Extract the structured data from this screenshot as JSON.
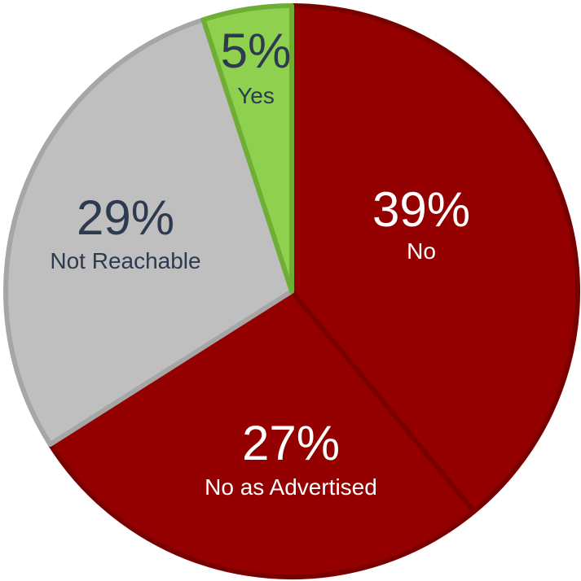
{
  "chart_data": {
    "type": "pie",
    "start_angle_deg": 0,
    "direction": "clockwise",
    "slices": [
      {
        "name": "No",
        "value": 39,
        "pct_label": "39%",
        "color": "#940000",
        "stroke": "#7a0000",
        "text_color": "#ffffff"
      },
      {
        "name": "No as Advertised",
        "value": 27,
        "pct_label": "27%",
        "color": "#940000",
        "stroke": "#7a0000",
        "text_color": "#ffffff"
      },
      {
        "name": "Not Reachable",
        "value": 29,
        "pct_label": "29%",
        "color": "#bfbfbf",
        "stroke": "#a6a6a6",
        "text_color": "#2e3a4f"
      },
      {
        "name": "Yes",
        "value": 5,
        "pct_label": "5%",
        "color": "#8fd14f",
        "stroke": "#6fae35",
        "text_color": "#2e3a4f"
      }
    ]
  }
}
